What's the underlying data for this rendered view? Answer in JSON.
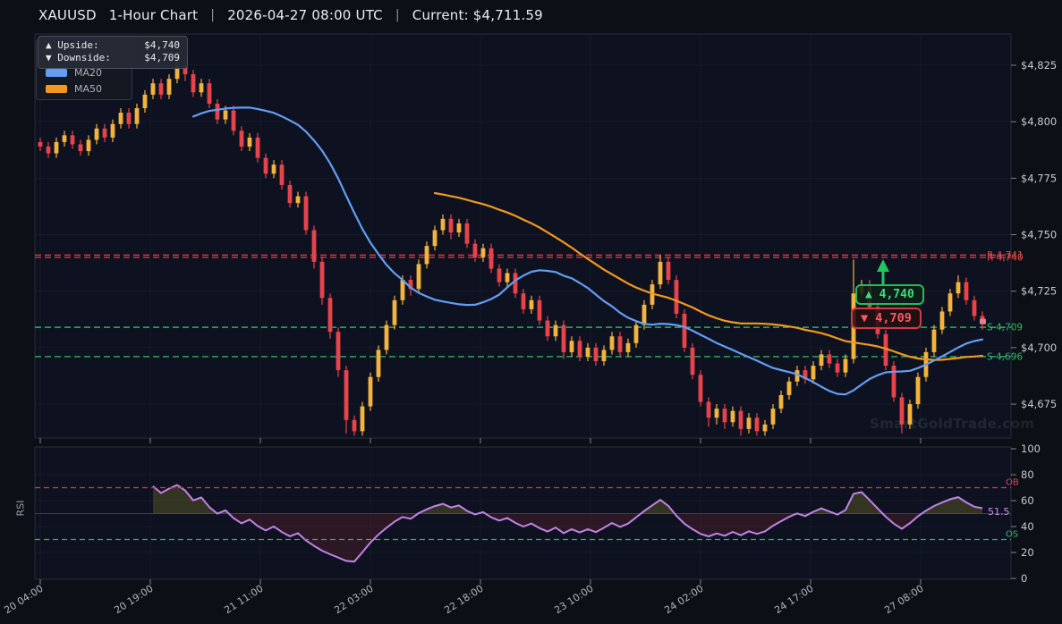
{
  "title": {
    "symbol": "XAUUSD",
    "timeframe": "1-Hour Chart",
    "separator": "|",
    "timestamp": "2026-04-27 08:00 UTC",
    "current": "Current: $4,711.59"
  },
  "overlay_panel": {
    "upside_label": "▲ Upside:",
    "upside_value": "$4,740",
    "downside_label": "▼ Downside:",
    "downside_value": "$4,709"
  },
  "legend": {
    "ma20_label": "MA20",
    "ma50_label": "MA50"
  },
  "badges": {
    "upside": "▲ 4,740",
    "downside": "▼ 4,709"
  },
  "watermark": "SmartGoldTrade.com",
  "colors": {
    "bull": "#f2b43e",
    "bear": "#e8434b",
    "ma20": "#649df4",
    "ma50": "#f2981f",
    "resistance": "#d8383f",
    "support": "#2bb25d",
    "rsi_line": "#c183e6",
    "rsi_fill_up": "rgba(190,175,45,0.22)",
    "rsi_fill_down": "rgba(165,45,60,0.20)",
    "grid": "rgba(165,180,205,0.055)",
    "panel_border": "#262e3c",
    "axis_text": "#c6ccd6",
    "time_text": "#aeb6c2",
    "marker": "#e07f8d"
  },
  "chart_data": {
    "type": "candlestick",
    "title": "XAUUSD 1-Hour Chart",
    "x_tick_labels": [
      "20 04:00",
      "20 19:00",
      "21 11:00",
      "22 03:00",
      "22 18:00",
      "23 10:00",
      "24 02:00",
      "24 17:00",
      "27 08:00"
    ],
    "price_axis": {
      "tick_labels": [
        "$4,825",
        "$4,800",
        "$4,775",
        "$4,750",
        "$4,725",
        "$4,700",
        "$4,675"
      ],
      "tick_values": [
        4825,
        4800,
        4775,
        4750,
        4725,
        4700,
        4675
      ]
    },
    "levels": [
      {
        "price": 4741,
        "label": "R 4,741",
        "kind": "resistance"
      },
      {
        "price": 4740,
        "label": "R 4,740",
        "kind": "resistance"
      },
      {
        "price": 4709,
        "label": "S 4,709",
        "kind": "support"
      },
      {
        "price": 4696,
        "label": "S 4,696",
        "kind": "support"
      }
    ],
    "current_price": 4711.59,
    "ohlc": [
      [
        4791,
        4793,
        4787,
        4789
      ],
      [
        4789,
        4791,
        4784,
        4786
      ],
      [
        4786,
        4793,
        4784,
        4791
      ],
      [
        4791,
        4796,
        4789,
        4794
      ],
      [
        4794,
        4796,
        4788,
        4790
      ],
      [
        4790,
        4792,
        4785,
        4787
      ],
      [
        4787,
        4794,
        4785,
        4792
      ],
      [
        4792,
        4799,
        4790,
        4797
      ],
      [
        4797,
        4799,
        4791,
        4793
      ],
      [
        4793,
        4801,
        4791,
        4799
      ],
      [
        4799,
        4806,
        4797,
        4804
      ],
      [
        4804,
        4806,
        4797,
        4799
      ],
      [
        4799,
        4808,
        4797,
        4806
      ],
      [
        4806,
        4814,
        4804,
        4812
      ],
      [
        4812,
        4819,
        4810,
        4817
      ],
      [
        4817,
        4819,
        4810,
        4812
      ],
      [
        4812,
        4821,
        4810,
        4819
      ],
      [
        4819,
        4830,
        4817,
        4825
      ],
      [
        4825,
        4828,
        4818,
        4821
      ],
      [
        4821,
        4823,
        4811,
        4813
      ],
      [
        4813,
        4819,
        4811,
        4817
      ],
      [
        4817,
        4819,
        4806,
        4808
      ],
      [
        4808,
        4810,
        4799,
        4801
      ],
      [
        4801,
        4807,
        4799,
        4805
      ],
      [
        4805,
        4807,
        4794,
        4796
      ],
      [
        4796,
        4798,
        4787,
        4789
      ],
      [
        4789,
        4795,
        4787,
        4793
      ],
      [
        4793,
        4795,
        4782,
        4784
      ],
      [
        4784,
        4786,
        4775,
        4777
      ],
      [
        4777,
        4783,
        4775,
        4781
      ],
      [
        4781,
        4783,
        4770,
        4772
      ],
      [
        4772,
        4774,
        4762,
        4764
      ],
      [
        4764,
        4769,
        4762,
        4767
      ],
      [
        4767,
        4769,
        4750,
        4752
      ],
      [
        4752,
        4754,
        4735,
        4738
      ],
      [
        4738,
        4740,
        4719,
        4722
      ],
      [
        4722,
        4724,
        4704,
        4707
      ],
      [
        4707,
        4709,
        4687,
        4690
      ],
      [
        4690,
        4692,
        4662,
        4668
      ],
      [
        4668,
        4670,
        4661,
        4663
      ],
      [
        4663,
        4676,
        4661,
        4674
      ],
      [
        4674,
        4689,
        4672,
        4687
      ],
      [
        4687,
        4701,
        4685,
        4699
      ],
      [
        4699,
        4712,
        4697,
        4710
      ],
      [
        4710,
        4723,
        4708,
        4721
      ],
      [
        4721,
        4732,
        4719,
        4730
      ],
      [
        4730,
        4732,
        4723,
        4726
      ],
      [
        4726,
        4739,
        4724,
        4737
      ],
      [
        4737,
        4747,
        4735,
        4745
      ],
      [
        4745,
        4754,
        4743,
        4752
      ],
      [
        4752,
        4759,
        4750,
        4757
      ],
      [
        4757,
        4759,
        4748,
        4751
      ],
      [
        4751,
        4757,
        4749,
        4755
      ],
      [
        4755,
        4757,
        4744,
        4746
      ],
      [
        4746,
        4748,
        4738,
        4740
      ],
      [
        4740,
        4746,
        4738,
        4744
      ],
      [
        4744,
        4746,
        4733,
        4735
      ],
      [
        4735,
        4737,
        4727,
        4729
      ],
      [
        4729,
        4735,
        4727,
        4733
      ],
      [
        4733,
        4735,
        4722,
        4724
      ],
      [
        4724,
        4726,
        4715,
        4717
      ],
      [
        4717,
        4723,
        4715,
        4721
      ],
      [
        4721,
        4723,
        4710,
        4712
      ],
      [
        4712,
        4714,
        4703,
        4705
      ],
      [
        4705,
        4712,
        4703,
        4710
      ],
      [
        4710,
        4712,
        4695,
        4698
      ],
      [
        4698,
        4705,
        4696,
        4703
      ],
      [
        4703,
        4705,
        4694,
        4696
      ],
      [
        4696,
        4702,
        4694,
        4700
      ],
      [
        4700,
        4702,
        4692,
        4694
      ],
      [
        4694,
        4701,
        4692,
        4699
      ],
      [
        4699,
        4707,
        4697,
        4705
      ],
      [
        4705,
        4707,
        4696,
        4698
      ],
      [
        4698,
        4704,
        4696,
        4702
      ],
      [
        4702,
        4712,
        4700,
        4710
      ],
      [
        4710,
        4721,
        4708,
        4719
      ],
      [
        4719,
        4730,
        4717,
        4728
      ],
      [
        4728,
        4741,
        4726,
        4738
      ],
      [
        4738,
        4740,
        4728,
        4730
      ],
      [
        4730,
        4732,
        4713,
        4715
      ],
      [
        4715,
        4717,
        4698,
        4700
      ],
      [
        4700,
        4702,
        4686,
        4688
      ],
      [
        4688,
        4690,
        4674,
        4676
      ],
      [
        4676,
        4678,
        4665,
        4669
      ],
      [
        4669,
        4675,
        4666,
        4673
      ],
      [
        4673,
        4675,
        4664,
        4667
      ],
      [
        4667,
        4674,
        4665,
        4672
      ],
      [
        4672,
        4674,
        4661,
        4664
      ],
      [
        4664,
        4671,
        4662,
        4669
      ],
      [
        4669,
        4671,
        4661,
        4663
      ],
      [
        4663,
        4668,
        4661,
        4666
      ],
      [
        4666,
        4675,
        4664,
        4673
      ],
      [
        4673,
        4681,
        4671,
        4679
      ],
      [
        4679,
        4687,
        4677,
        4685
      ],
      [
        4685,
        4692,
        4683,
        4690
      ],
      [
        4690,
        4692,
        4684,
        4686
      ],
      [
        4686,
        4694,
        4684,
        4692
      ],
      [
        4692,
        4699,
        4690,
        4697
      ],
      [
        4697,
        4699,
        4691,
        4693
      ],
      [
        4693,
        4695,
        4687,
        4689
      ],
      [
        4689,
        4697,
        4687,
        4695
      ],
      [
        4695,
        4739,
        4693,
        4724
      ],
      [
        4724,
        4730,
        4722,
        4728
      ],
      [
        4728,
        4730,
        4716,
        4718
      ],
      [
        4718,
        4720,
        4704,
        4706
      ],
      [
        4706,
        4708,
        4690,
        4692
      ],
      [
        4692,
        4694,
        4676,
        4678
      ],
      [
        4678,
        4680,
        4662,
        4666
      ],
      [
        4666,
        4677,
        4664,
        4675
      ],
      [
        4675,
        4689,
        4673,
        4687
      ],
      [
        4687,
        4700,
        4685,
        4698
      ],
      [
        4698,
        4710,
        4696,
        4708
      ],
      [
        4708,
        4718,
        4706,
        4716
      ],
      [
        4716,
        4726,
        4714,
        4724
      ],
      [
        4724,
        4732,
        4722,
        4729
      ],
      [
        4729,
        4731,
        4719,
        4721
      ],
      [
        4721,
        4723,
        4712,
        4714
      ],
      [
        4714,
        4716,
        4708,
        4711.6
      ]
    ],
    "indicators": {
      "ma20_window": 20,
      "ma50_window": 50,
      "rsi_period": 14
    },
    "rsi_panel": {
      "ylabel": "RSI",
      "axis_ticks": [
        100,
        80,
        60,
        40,
        20,
        0
      ],
      "overbought": 70,
      "oversold": 30,
      "ob_label": "OB",
      "os_label": "OS",
      "current_value_label": "51.5"
    }
  }
}
